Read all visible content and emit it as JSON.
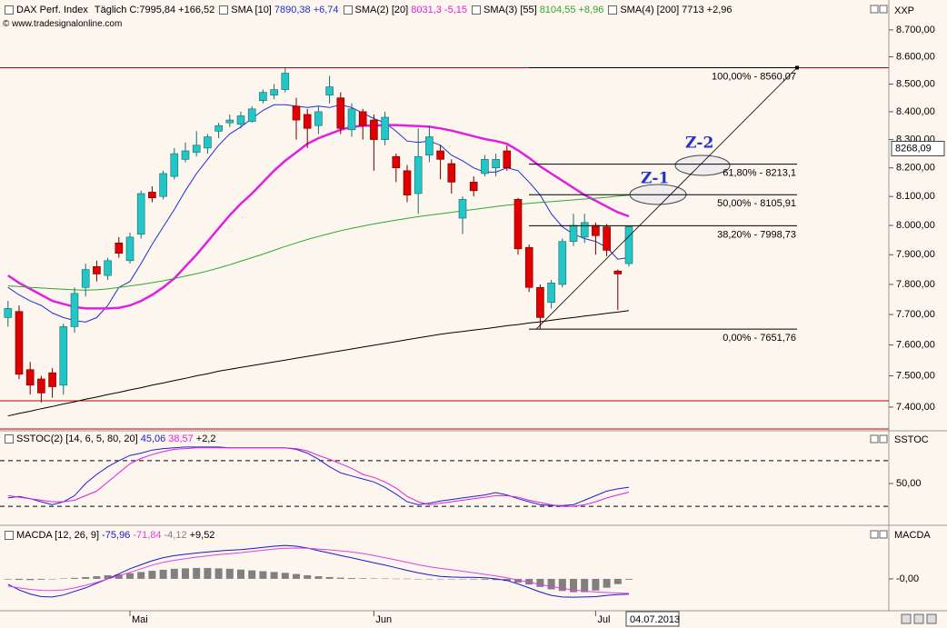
{
  "chart_data": [
    {
      "type": "candlestick",
      "title": "DAX Perf. Index",
      "period": "Täglich",
      "last": "C:7995,84 +166,52",
      "source": "© www.tradesignalonline.com",
      "axis_label": "XXP",
      "cursor_date": "04.07.2013",
      "categories": [
        null,
        null,
        null,
        null,
        null,
        null,
        null,
        null,
        null,
        null,
        null,
        "Mai",
        null,
        null,
        null,
        null,
        null,
        null,
        null,
        null,
        null,
        null,
        null,
        null,
        null,
        null,
        null,
        null,
        null,
        null,
        null,
        null,
        null,
        "Jun",
        null,
        null,
        null,
        null,
        null,
        null,
        null,
        null,
        null,
        null,
        null,
        null,
        null,
        null,
        null,
        null,
        null,
        null,
        null,
        "Jul",
        null,
        null,
        null
      ],
      "ohlc": {
        "up_color": "#22c6c6",
        "down_color": "#e00000",
        "open": [
          7690,
          7710,
          7520,
          7490,
          7510,
          7470,
          7660,
          7790,
          7860,
          7830,
          7940,
          7880,
          7970,
          8115,
          8100,
          8170,
          8230,
          8255,
          8270,
          8330,
          8360,
          8355,
          8365,
          8440,
          8460,
          8480,
          8420,
          8390,
          8350,
          8460,
          8450,
          8335,
          8400,
          8370,
          8300,
          8240,
          8190,
          8110,
          8245,
          8260,
          8215,
          8025,
          8150,
          8180,
          8200,
          8260,
          8090,
          7925,
          7790,
          7740,
          7800,
          7945,
          7960,
          8000,
          7995,
          7845,
          7870
        ],
        "high": [
          7745,
          7730,
          7545,
          7500,
          7525,
          7670,
          7790,
          7870,
          7880,
          7890,
          7960,
          7975,
          8120,
          8135,
          8190,
          8270,
          8290,
          8330,
          8320,
          8360,
          8390,
          8400,
          8420,
          8480,
          8500,
          8560.07,
          8450,
          8410,
          8420,
          8530,
          8470,
          8430,
          8410,
          8390,
          8400,
          8250,
          8210,
          8340,
          8350,
          8280,
          8230,
          8100,
          8170,
          8245,
          8250,
          8280,
          8095,
          7935,
          7800,
          7815,
          7955,
          8040,
          8040,
          8010,
          8005,
          7850,
          8000
        ],
        "low": [
          7660,
          7490,
          7440,
          7415,
          7430,
          7440,
          7640,
          7760,
          7810,
          7815,
          7890,
          7870,
          7955,
          8080,
          8090,
          8160,
          8220,
          8240,
          8250,
          8305,
          8345,
          8340,
          8360,
          8430,
          8445,
          8470,
          8300,
          8270,
          8320,
          8430,
          8320,
          8310,
          8300,
          8190,
          8280,
          8150,
          8080,
          8040,
          8220,
          8160,
          8110,
          7970,
          8100,
          8170,
          8170,
          8190,
          7900,
          7775,
          7651.76,
          7720,
          7790,
          7930,
          7940,
          7900,
          7895,
          7715,
          7860
        ],
        "close": [
          7720,
          7505,
          7470,
          7445,
          7465,
          7660,
          7770,
          7850,
          7835,
          7880,
          7905,
          7960,
          8110,
          8095,
          8180,
          8250,
          8260,
          8280,
          8310,
          8350,
          8370,
          8385,
          8410,
          8470,
          8480,
          8540,
          8370,
          8340,
          8400,
          8490,
          8340,
          8410,
          8350,
          8300,
          8380,
          8200,
          8105,
          8240,
          8310,
          8230,
          8150,
          8090,
          8120,
          8230,
          8230,
          8200,
          7920,
          7790,
          7690,
          7805,
          7945,
          8000,
          8010,
          7965,
          7915,
          7835,
          7995.84
        ]
      },
      "series": [
        {
          "name": "SMA [10]",
          "value_text": "7890,38 +6,74",
          "color": "#1f2fd0",
          "width": 1,
          "values": [
            7790,
            7765,
            7745,
            7730,
            7705,
            7690,
            7680,
            7675,
            7690,
            7730,
            7790,
            7810,
            7870,
            7935,
            7995,
            8055,
            8120,
            8180,
            8230,
            8280,
            8320,
            8345,
            8375,
            8405,
            8425,
            8425,
            8420,
            8415,
            8420,
            8415,
            8425,
            8415,
            8395,
            8375,
            8360,
            8330,
            8295,
            8290,
            8295,
            8280,
            8245,
            8225,
            8200,
            8185,
            8185,
            8200,
            8190,
            8150,
            8105,
            8040,
            7995,
            7970,
            7955,
            7945,
            7925,
            7885,
            7890.38
          ]
        },
        {
          "name": "SMA(2) [20]",
          "value_text": "8031,3 -5,15",
          "color": "#e020e0",
          "width": 2.5,
          "values": [
            7830,
            7805,
            7785,
            7765,
            7745,
            7735,
            7725,
            7720,
            7720,
            7720,
            7722,
            7730,
            7745,
            7765,
            7790,
            7820,
            7860,
            7900,
            7945,
            7990,
            8035,
            8075,
            8110,
            8150,
            8190,
            8225,
            8255,
            8285,
            8305,
            8320,
            8335,
            8345,
            8350,
            8350,
            8352,
            8352,
            8350,
            8348,
            8346,
            8340,
            8332,
            8322,
            8312,
            8302,
            8295,
            8285,
            8262,
            8235,
            8205,
            8180,
            8155,
            8130,
            8105,
            8085,
            8065,
            8045,
            8031.3
          ]
        },
        {
          "name": "SMA(3) [55]",
          "value_text": "8104,55 +8,96",
          "color": "#2ea82e",
          "width": 1,
          "values": [
            7795,
            7793,
            7790,
            7788,
            7786,
            7784,
            7782,
            7781,
            7782,
            7785,
            7790,
            7795,
            7800,
            7806,
            7812,
            7820,
            7828,
            7836,
            7845,
            7855,
            7866,
            7878,
            7890,
            7902,
            7915,
            7928,
            7940,
            7952,
            7962,
            7972,
            7982,
            7990,
            7998,
            8005,
            8012,
            8018,
            8024,
            8030,
            8035,
            8040,
            8045,
            8050,
            8055,
            8060,
            8065,
            8070,
            8073,
            8076,
            8079,
            8082,
            8085,
            8088,
            8091,
            8094,
            8097,
            8101,
            8104.55
          ]
        },
        {
          "name": "SMA(4) [200]",
          "value_text": "7713 +2,96",
          "color": "#000000",
          "width": 1,
          "values": [
            7372,
            7380,
            7387,
            7395,
            7402,
            7410,
            7417,
            7425,
            7432,
            7440,
            7447,
            7455,
            7462,
            7470,
            7477,
            7485,
            7492,
            7500,
            7507,
            7515,
            7521,
            7527,
            7533,
            7539,
            7545,
            7551,
            7557,
            7563,
            7569,
            7575,
            7581,
            7587,
            7593,
            7599,
            7605,
            7611,
            7617,
            7623,
            7629,
            7635,
            7640,
            7644,
            7649,
            7653,
            7658,
            7663,
            7667,
            7672,
            7676,
            7681,
            7686,
            7690,
            7695,
            7699,
            7704,
            7708,
            7713
          ]
        }
      ],
      "hlines": [
        8560.07,
        7420
      ],
      "hline_color": "#c00000",
      "fib_levels": [
        {
          "value": 8560.07,
          "label": "100,00% - 8560,07"
        },
        {
          "value": 8213.1,
          "label": "61,80% - 8213,1"
        },
        {
          "value": 8105.91,
          "label": "50,00% - 8105,91"
        },
        {
          "value": 7998.73,
          "label": "38,20% - 7998,73"
        },
        {
          "value": 7651.76,
          "label": "0,00% - 7651,76"
        }
      ],
      "annotations": [
        "Z-1",
        "Z-2"
      ],
      "cursor_price": {
        "value": 8268.09,
        "label": "8268,09"
      },
      "log_scale": true,
      "ylim": [
        7331,
        8802
      ],
      "yticks": [
        {
          "value": 8700,
          "label": "8.700,00"
        },
        {
          "value": 8600,
          "label": "8.600,00"
        },
        {
          "value": 8500,
          "label": "8.500,00"
        },
        {
          "value": 8400,
          "label": "8.400,00"
        },
        {
          "value": 8300,
          "label": "8.300,00"
        },
        {
          "value": 8200,
          "label": "8.200,00"
        },
        {
          "value": 8100,
          "label": "8.100,00"
        },
        {
          "value": 8000,
          "label": "8.000,00"
        },
        {
          "value": 7900,
          "label": "7.900,00"
        },
        {
          "value": 7800,
          "label": "7.800,00"
        },
        {
          "value": 7700,
          "label": "7.700,00"
        },
        {
          "value": 7600,
          "label": "7.600,00"
        },
        {
          "value": 7500,
          "label": "7.500,00"
        },
        {
          "value": 7400,
          "label": "7.400,00"
        }
      ]
    },
    {
      "type": "line",
      "title": "SSTOC(2) [14, 6, 5, 80, 20]",
      "change_text": "+2,2",
      "axis_label": "SSTOC",
      "series": [
        {
          "value_text": "45,06",
          "color": "#2020d0",
          "values": [
            31,
            33,
            30,
            26,
            22,
            26,
            34,
            50,
            62,
            72,
            80,
            87,
            90,
            94,
            96,
            97,
            98,
            98,
            98,
            98,
            97,
            97,
            97,
            97,
            97,
            97,
            95,
            90,
            82,
            72,
            64,
            60,
            56,
            52,
            45,
            36,
            26,
            22,
            24,
            27,
            29,
            31,
            33,
            35,
            38,
            35,
            30,
            26,
            22,
            21,
            21,
            22,
            28,
            34,
            40,
            43,
            45.06
          ]
        },
        {
          "value_text": "38,57",
          "color": "#e020e0",
          "values": [
            34,
            32,
            30,
            28,
            26,
            26,
            28,
            34,
            40,
            52,
            64,
            76,
            83,
            88,
            92,
            95,
            96,
            97,
            97,
            97,
            97,
            97,
            97,
            97,
            97,
            97,
            96,
            93,
            87,
            82,
            76,
            70,
            62,
            58,
            52,
            44,
            33,
            26,
            22,
            24,
            26,
            28,
            30,
            32,
            34,
            34,
            32,
            28,
            25,
            22,
            20,
            20,
            22,
            26,
            31,
            35,
            38.57
          ]
        }
      ],
      "levels": [
        80,
        20
      ],
      "ylim": [
        -5,
        117
      ],
      "yticks": [
        {
          "value": 50,
          "label": "50,00"
        }
      ]
    },
    {
      "type": "line",
      "title": "MACDA [12, 26, 9]",
      "change_text": "+9,52",
      "axis_label": "MACDA",
      "series": [
        {
          "value_text": "-75,96",
          "color": "#1818c8",
          "values": [
            -27,
            -55,
            -75,
            -88,
            -90,
            -80,
            -62,
            -45,
            -22,
            0,
            25,
            50,
            70,
            90,
            105,
            115,
            122,
            128,
            133,
            138,
            142,
            145,
            150,
            156,
            162,
            166,
            162,
            153,
            140,
            128,
            116,
            104,
            92,
            80,
            68,
            55,
            42,
            30,
            20,
            12,
            9,
            8,
            8,
            5,
            0,
            -8,
            -25,
            -45,
            -65,
            -82,
            -90,
            -91,
            -90,
            -88,
            -82,
            -78,
            -75.96
          ]
        },
        {
          "value_text": "-71,84",
          "color": "#e040e0",
          "values": [
            -36,
            -45,
            -52,
            -57,
            -58,
            -55,
            -45,
            -32,
            -18,
            0,
            15,
            32,
            50,
            68,
            82,
            92,
            100,
            108,
            114,
            120,
            125,
            130,
            136,
            142,
            148,
            152,
            153,
            152,
            148,
            144,
            139,
            133,
            126,
            116,
            105,
            94,
            82,
            70,
            60,
            52,
            45,
            38,
            30,
            22,
            14,
            5,
            -6,
            -16,
            -28,
            -38,
            -47,
            -55,
            -61,
            -65,
            -68,
            -70,
            -71.84
          ]
        },
        {
          "value_text": "-4,12",
          "color": "#808080",
          "kind": "bar",
          "values": [
            -3,
            -5,
            -6,
            -4,
            -2,
            2,
            5,
            9,
            13,
            18,
            22,
            28,
            34,
            40,
            45,
            50,
            52,
            54,
            54,
            52,
            50,
            46,
            42,
            38,
            34,
            30,
            24,
            18,
            13,
            9,
            6,
            4,
            3,
            2,
            2,
            1,
            1,
            0,
            -1,
            -1,
            -2,
            -2,
            -3,
            -4,
            -6,
            -10,
            -18,
            -28,
            -40,
            -52,
            -60,
            -66,
            -66,
            -58,
            -44,
            -26,
            -4.12
          ]
        }
      ],
      "ylim": [
        -158,
        252
      ],
      "yticks": [
        {
          "value": 0,
          "label": "-0,00"
        }
      ]
    }
  ]
}
